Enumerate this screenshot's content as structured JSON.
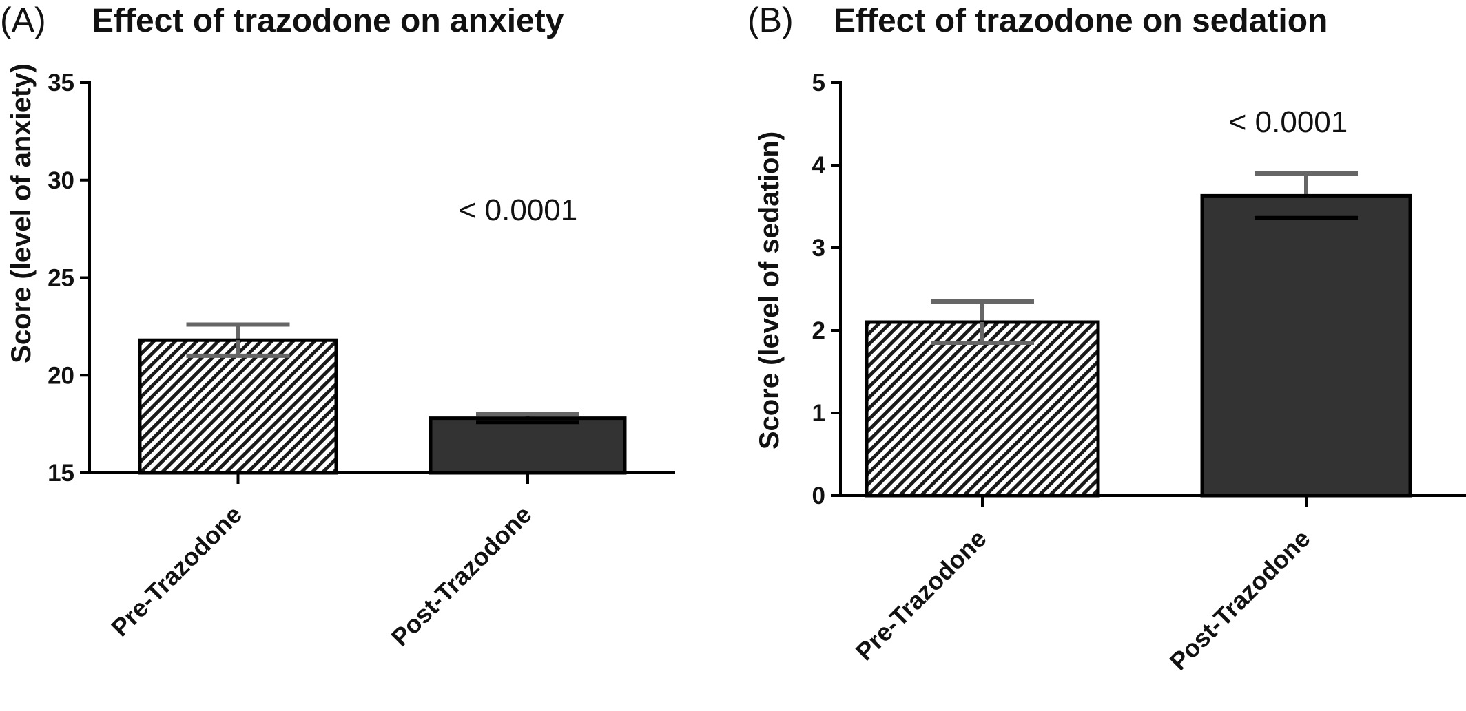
{
  "chart_data": [
    {
      "panel": "(A)",
      "type": "bar",
      "title": "Effect of trazodone on anxiety",
      "xlabel": "",
      "ylabel": "Score  (level of anxiety)",
      "ylim": [
        15,
        35
      ],
      "yticks": [
        15,
        20,
        25,
        30,
        35
      ],
      "categories": [
        "Pre-Trazodone",
        "Post-Trazodone"
      ],
      "values": [
        21.8,
        17.8
      ],
      "errors": [
        0.8,
        0.2
      ],
      "bar_styles": [
        "hatched",
        "solid"
      ],
      "bar_colors": [
        "#ffffff",
        "#333333"
      ],
      "error_color": "#666666",
      "annotation": "< 0.0001",
      "grid": false
    },
    {
      "panel": "(B)",
      "type": "bar",
      "title": "Effect of trazodone on sedation",
      "xlabel": "",
      "ylabel": "Score (level of sedation)",
      "ylim": [
        0,
        5
      ],
      "yticks": [
        0,
        1,
        2,
        3,
        4,
        5
      ],
      "categories": [
        "Pre-Trazodone",
        "Post-Trazodone"
      ],
      "values": [
        2.1,
        3.63
      ],
      "errors": [
        0.25,
        0.27
      ],
      "bar_styles": [
        "hatched",
        "solid"
      ],
      "bar_colors": [
        "#ffffff",
        "#333333"
      ],
      "error_color": "#666666",
      "annotation": "< 0.0001",
      "grid": false
    }
  ]
}
